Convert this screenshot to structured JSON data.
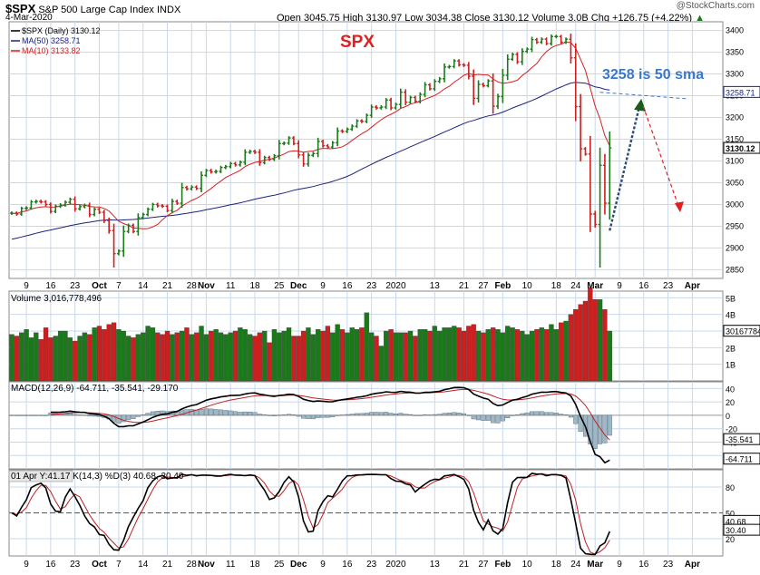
{
  "header": {
    "symbol": "$SPX",
    "name": "S&P 500 Large Cap Index",
    "exchange": "INDX",
    "date": "4-Mar-2020",
    "watermark": "@StockCharts.com",
    "ohlc": "Open 3045.75  High 3130.97  Low 3034.38  Close 3130.12  Volume 3.0B  Chg +126.75 (+4.22%)",
    "chg_icon": "up-triangle-icon"
  },
  "colors": {
    "up": "#1a7a1a",
    "down": "#cc1f1f",
    "ma50": "#1a237e",
    "ma10": "#d42020",
    "annotation_blue": "#3a78c9",
    "annotation_red": "#e02020",
    "panel_bg": "#ffffff",
    "grid": "#c8d8ea"
  },
  "chart_data": [
    {
      "type": "candlestick",
      "panel": "price",
      "title": "SPX",
      "legend": [
        {
          "label": "$SPX (Daily) 3130.12",
          "color": "#000000"
        },
        {
          "label": "MA(50) 3258.71",
          "color": "#1a237e"
        },
        {
          "label": "MA(10) 3133.82",
          "color": "#d42020"
        }
      ],
      "annotation": "3258 is 50 sma",
      "ylim": [
        2830,
        3420
      ],
      "yticks": [
        2850,
        2900,
        2950,
        3000,
        3050,
        3100,
        3150,
        3200,
        3250,
        3300,
        3350,
        3400
      ],
      "price_tags": [
        {
          "label": "3258.71",
          "value": 3258.71,
          "color": "#1a237e"
        },
        {
          "label": "3130.12",
          "value": 3130.12,
          "color": "#000000"
        }
      ],
      "x_labels": [
        "9",
        "16",
        "23",
        "Oct",
        "7",
        "14",
        "21",
        "28",
        "Nov",
        "11",
        "18",
        "25",
        "Dec",
        "9",
        "16",
        "23",
        "2020",
        "13",
        "21",
        "27",
        "Feb",
        "10",
        "18",
        "24",
        "Mar",
        "9",
        "16",
        "23",
        "Apr"
      ],
      "x_label_days": [
        3,
        8,
        13,
        18,
        22,
        27,
        32,
        37,
        40,
        45,
        50,
        55,
        59,
        64,
        69,
        74,
        79,
        87,
        93,
        97,
        101,
        106,
        112,
        116,
        120,
        125,
        130,
        135,
        140
      ],
      "close": [
        2980,
        2978,
        2991,
        2992,
        3006,
        3007,
        3006,
        3000,
        2984,
        2996,
        2999,
        3005,
        3012,
        2990,
        2995,
        2998,
        2977,
        2989,
        2982,
        2963,
        2940,
        2887,
        2893,
        2938,
        2952,
        2938,
        2970,
        2977,
        2989,
        3000,
        2997,
        2996,
        2986,
        3007,
        3003,
        3039,
        3036,
        3040,
        3037,
        3067,
        3078,
        3075,
        3076,
        3085,
        3087,
        3094,
        3091,
        3097,
        3120,
        3122,
        3120,
        3096,
        3108,
        3104,
        3112,
        3140,
        3141,
        3153,
        3140,
        3114,
        3093,
        3113,
        3117,
        3145,
        3135,
        3132,
        3142,
        3169,
        3168,
        3173,
        3180,
        3192,
        3191,
        3205,
        3224,
        3222,
        3224,
        3240,
        3222,
        3230,
        3258,
        3235,
        3246,
        3237,
        3253,
        3275,
        3266,
        3283,
        3289,
        3316,
        3317,
        3330,
        3321,
        3320,
        3295,
        3244,
        3276,
        3273,
        3284,
        3226,
        3248,
        3297,
        3334,
        3345,
        3328,
        3352,
        3357,
        3379,
        3373,
        3380,
        3370,
        3386,
        3386,
        3373,
        3380,
        3337,
        3225,
        3128,
        3116,
        2978,
        2954,
        3090,
        3003,
        3130
      ],
      "volume_B": [
        2.8,
        2.7,
        2.9,
        3.1,
        2.6,
        2.9,
        2.5,
        3.2,
        2.6,
        2.7,
        3.0,
        3.0,
        2.6,
        2.4,
        2.7,
        2.9,
        2.8,
        3.2,
        3.3,
        3.1,
        3.4,
        3.5,
        3.1,
        3.0,
        2.7,
        2.6,
        2.8,
        2.9,
        3.3,
        3.2,
        2.9,
        2.8,
        3.0,
        2.8,
        2.9,
        3.0,
        3.2,
        2.8,
        2.9,
        3.3,
        2.8,
        3.0,
        3.1,
        2.9,
        2.8,
        2.9,
        3.0,
        3.2,
        3.1,
        2.8,
        2.7,
        2.9,
        3.0,
        2.3,
        3.1,
        2.9,
        3.0,
        3.2,
        2.7,
        2.7,
        3.0,
        3.2,
        2.8,
        3.1,
        3.0,
        3.3,
        2.9,
        3.4,
        3.1,
        2.9,
        3.2,
        3.1,
        3.2,
        4.1,
        2.9,
        2.7,
        2.1,
        3.0,
        3.1,
        2.9,
        2.9,
        2.9,
        3.0,
        2.7,
        3.1,
        3.1,
        3.0,
        3.3,
        3.0,
        3.2,
        3.2,
        3.3,
        3.2,
        3.0,
        3.3,
        3.4,
        3.0,
        2.9,
        3.1,
        3.2,
        3.1,
        2.9,
        3.3,
        3.2,
        3.1,
        3.0,
        2.8,
        3.0,
        3.1,
        3.2,
        3.1,
        3.4,
        3.1,
        3.5,
        3.6,
        4.0,
        4.3,
        4.6,
        4.8,
        5.6,
        4.9,
        4.9,
        4.3,
        3.0
      ]
    },
    {
      "type": "bar",
      "panel": "volume",
      "legend": "Volume 3,016,778,496",
      "ylim": [
        0,
        5.4
      ],
      "ytick_labels": [
        {
          "label": "5B",
          "value": 5
        },
        {
          "label": "4B",
          "value": 4
        },
        {
          "label": "3B",
          "value": 3
        },
        {
          "label": "2B",
          "value": 2
        },
        {
          "label": "1B",
          "value": 1
        }
      ],
      "last_tag": "3016778496"
    },
    {
      "type": "line",
      "panel": "macd",
      "legend": "MACD(12,26,9) -64.711, -35.541, -29.170",
      "ylim": [
        -80,
        50
      ],
      "yticks": [
        40,
        20,
        0,
        -20,
        -40,
        -60
      ],
      "tags": [
        {
          "label": "-35.541",
          "value": -35.541
        },
        {
          "label": "-64.711",
          "value": -64.711
        }
      ]
    },
    {
      "type": "line",
      "panel": "stochastic",
      "legend": "01 Apr  Y:41.17  K(14,3) %D(3) 40.68, 30.40",
      "ylim": [
        0,
        100
      ],
      "yticks": [
        80,
        50,
        20
      ],
      "tags": [
        {
          "label": "40.68",
          "value": 40.68
        },
        {
          "label": "30.40",
          "value": 30.4
        }
      ]
    }
  ]
}
